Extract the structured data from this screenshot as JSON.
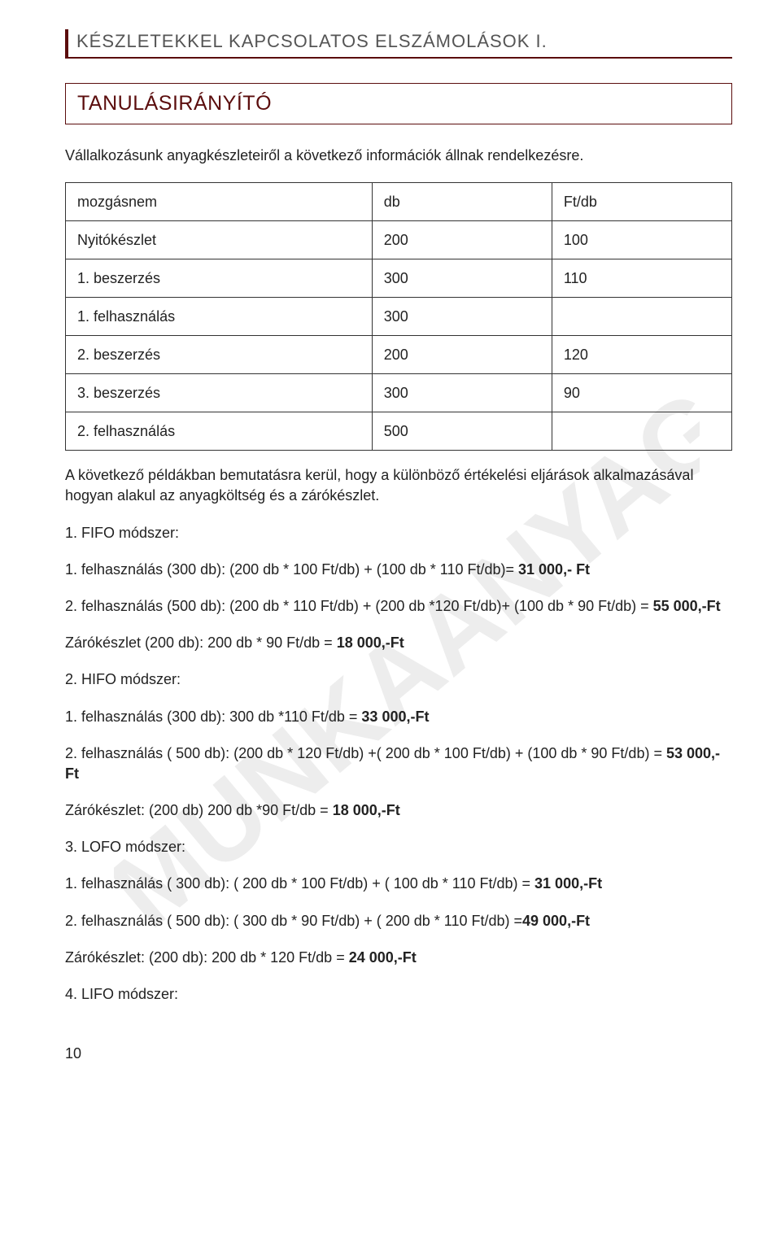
{
  "header_title": "KÉSZLETEKKEL KAPCSOLATOS ELSZÁMOLÁSOK I.",
  "section_title": "TANULÁSIRÁNYÍTÓ",
  "intro_para": "Vállalkozásunk anyagkészleteiről a következő információk állnak rendelkezésre.",
  "table": {
    "rows": [
      [
        "mozgásnem",
        "db",
        "Ft/db"
      ],
      [
        "Nyitókészlet",
        "200",
        "100"
      ],
      [
        "1. beszerzés",
        "300",
        "110"
      ],
      [
        "1. felhasználás",
        "300",
        ""
      ],
      [
        "2. beszerzés",
        "200",
        "120"
      ],
      [
        "3. beszerzés",
        "300",
        "90"
      ],
      [
        "2. felhasználás",
        "500",
        ""
      ]
    ]
  },
  "after_table_para": "A következő példákban bemutatásra kerül, hogy a különböző értékelési eljárások alkalmazásával hogyan alakul az anyagköltség és a zárókészlet.",
  "methods": {
    "fifo": {
      "title": "1.  FIFO módszer:",
      "line1_pre": "1. felhasználás (300 db): (200 db * 100 Ft/db) + (100 db * 110 Ft/db)= ",
      "line1_bold": "31 000,- Ft",
      "line2_pre": "2. felhasználás (500 db): (200 db * 110 Ft/db) + (200 db *120 Ft/db)+ (100 db * 90 Ft/db) = ",
      "line2_bold": "55 000,-Ft",
      "closing_pre": "Zárókészlet (200 db): 200 db * 90 Ft/db = ",
      "closing_bold": "18 000,-Ft"
    },
    "hifo": {
      "title": "2.  HIFO módszer:",
      "line1_pre": "1. felhasználás (300 db):  300 db *110 Ft/db = ",
      "line1_bold": "33 000,-Ft",
      "line2_pre": "2. felhasználás ( 500 db): (200 db * 120 Ft/db) +( 200 db * 100 Ft/db) + (100 db * 90 Ft/db) = ",
      "line2_bold": "53 000,-Ft",
      "closing_pre": "Zárókészlet: (200 db) 200 db *90 Ft/db = ",
      "closing_bold": "18 000,-Ft"
    },
    "lofo": {
      "title": "3.  LOFO módszer:",
      "line1_pre": "1. felhasználás ( 300 db): ( 200 db * 100 Ft/db) + ( 100 db * 110 Ft/db) = ",
      "line1_bold": "31 000,-Ft",
      "line2_pre": "2. felhasználás ( 500 db): ( 300 db * 90 Ft/db) + ( 200 db * 110 Ft/db) =",
      "line2_bold": "49 000,-Ft",
      "closing_pre": "Zárókészlet: (200 db): 200 db * 120 Ft/db = ",
      "closing_bold": "24 000,-Ft"
    },
    "lifo": {
      "title": "4.  LIFO módszer:"
    }
  },
  "page_number": "10",
  "colors": {
    "brand": "#5b0d0d",
    "text": "#222222",
    "header_text": "#555555",
    "border": "#333333",
    "background": "#ffffff",
    "watermark": "#e9e9e9"
  },
  "fonts": {
    "body_family": "Trebuchet MS",
    "body_size_pt": 13,
    "title_size_pt": 18
  }
}
